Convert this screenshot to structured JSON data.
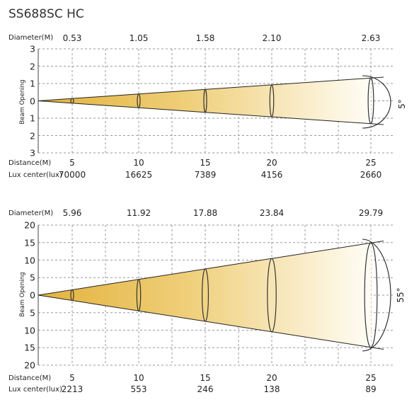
{
  "title": "SS688SC HC",
  "labels": {
    "diameter": "Diameter(M)",
    "distance": "Distance(M)",
    "lux": "Lux center(lux)",
    "beam": "Beam Opening"
  },
  "colors": {
    "beam_dark": "#e3b23c",
    "beam_light": "#fffdf6",
    "grid": "#9a9a9a"
  },
  "chart_data": [
    {
      "type": "beam-diagram",
      "angle_label": "5°",
      "distances": [
        "5",
        "10",
        "15",
        "20",
        "25"
      ],
      "diameters": [
        "0.53",
        "1.05",
        "1.58",
        "2.10",
        "2.63"
      ],
      "lux": [
        "70000",
        "16625",
        "7389",
        "4156",
        "2660"
      ],
      "y_ticks": [
        "3",
        "2",
        "1",
        "0",
        "1",
        "2",
        "3"
      ],
      "y_max": 3,
      "beam_angle_deg": 5
    },
    {
      "type": "beam-diagram",
      "angle_label": "55°",
      "distances": [
        "5",
        "10",
        "15",
        "20",
        "25"
      ],
      "diameters": [
        "5.96",
        "11.92",
        "17.88",
        "23.84",
        "29.79"
      ],
      "lux": [
        "2213",
        "553",
        "246",
        "138",
        "89"
      ],
      "y_ticks": [
        "20",
        "15",
        "10",
        "5",
        "0",
        "5",
        "10",
        "15",
        "20"
      ],
      "y_max": 20,
      "beam_angle_deg": 55
    }
  ]
}
